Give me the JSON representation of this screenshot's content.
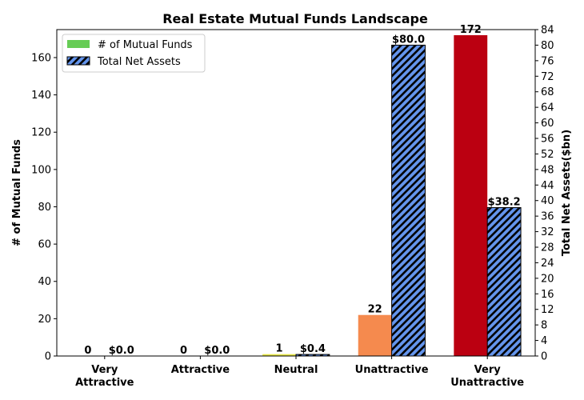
{
  "chart_data": {
    "type": "bar",
    "title": "Real Estate Mutual Funds Landscape",
    "categories": [
      [
        "Very",
        "Attractive"
      ],
      [
        "Attractive"
      ],
      [
        "Neutral"
      ],
      [
        "Unattractive"
      ],
      [
        "Very",
        "Unattractive"
      ]
    ],
    "series": [
      {
        "name": "# of Mutual Funds",
        "axis": "left",
        "values": [
          0,
          0,
          1,
          22,
          172
        ],
        "labels": [
          "0",
          "0",
          "1",
          "22",
          "172"
        ],
        "colors": [
          "#66cc55",
          "#a8d44b",
          "#e8e84a",
          "#f58a4e",
          "#bb0011"
        ],
        "legend_color": "#66cc55"
      },
      {
        "name": "Total Net Assets",
        "axis": "right",
        "values": [
          0.0,
          0.0,
          0.4,
          80.0,
          38.2
        ],
        "labels": [
          "$0.0",
          "$0.0",
          "$0.4",
          "$80.0",
          "$38.2"
        ],
        "color": "#6495ed",
        "hatch": "black diagonal"
      }
    ],
    "ylabel": "# of Mutual Funds",
    "ylim": [
      0,
      175
    ],
    "yticks": [
      0,
      20,
      40,
      60,
      80,
      100,
      120,
      140,
      160
    ],
    "y2label": "Total Net Assets($bn)",
    "y2lim": [
      0,
      84
    ],
    "y2ticks": [
      0,
      4,
      8,
      12,
      16,
      20,
      24,
      28,
      32,
      36,
      40,
      44,
      48,
      52,
      56,
      60,
      64,
      68,
      72,
      76,
      80,
      84
    ],
    "legend_position": "top-left",
    "grid": false
  }
}
